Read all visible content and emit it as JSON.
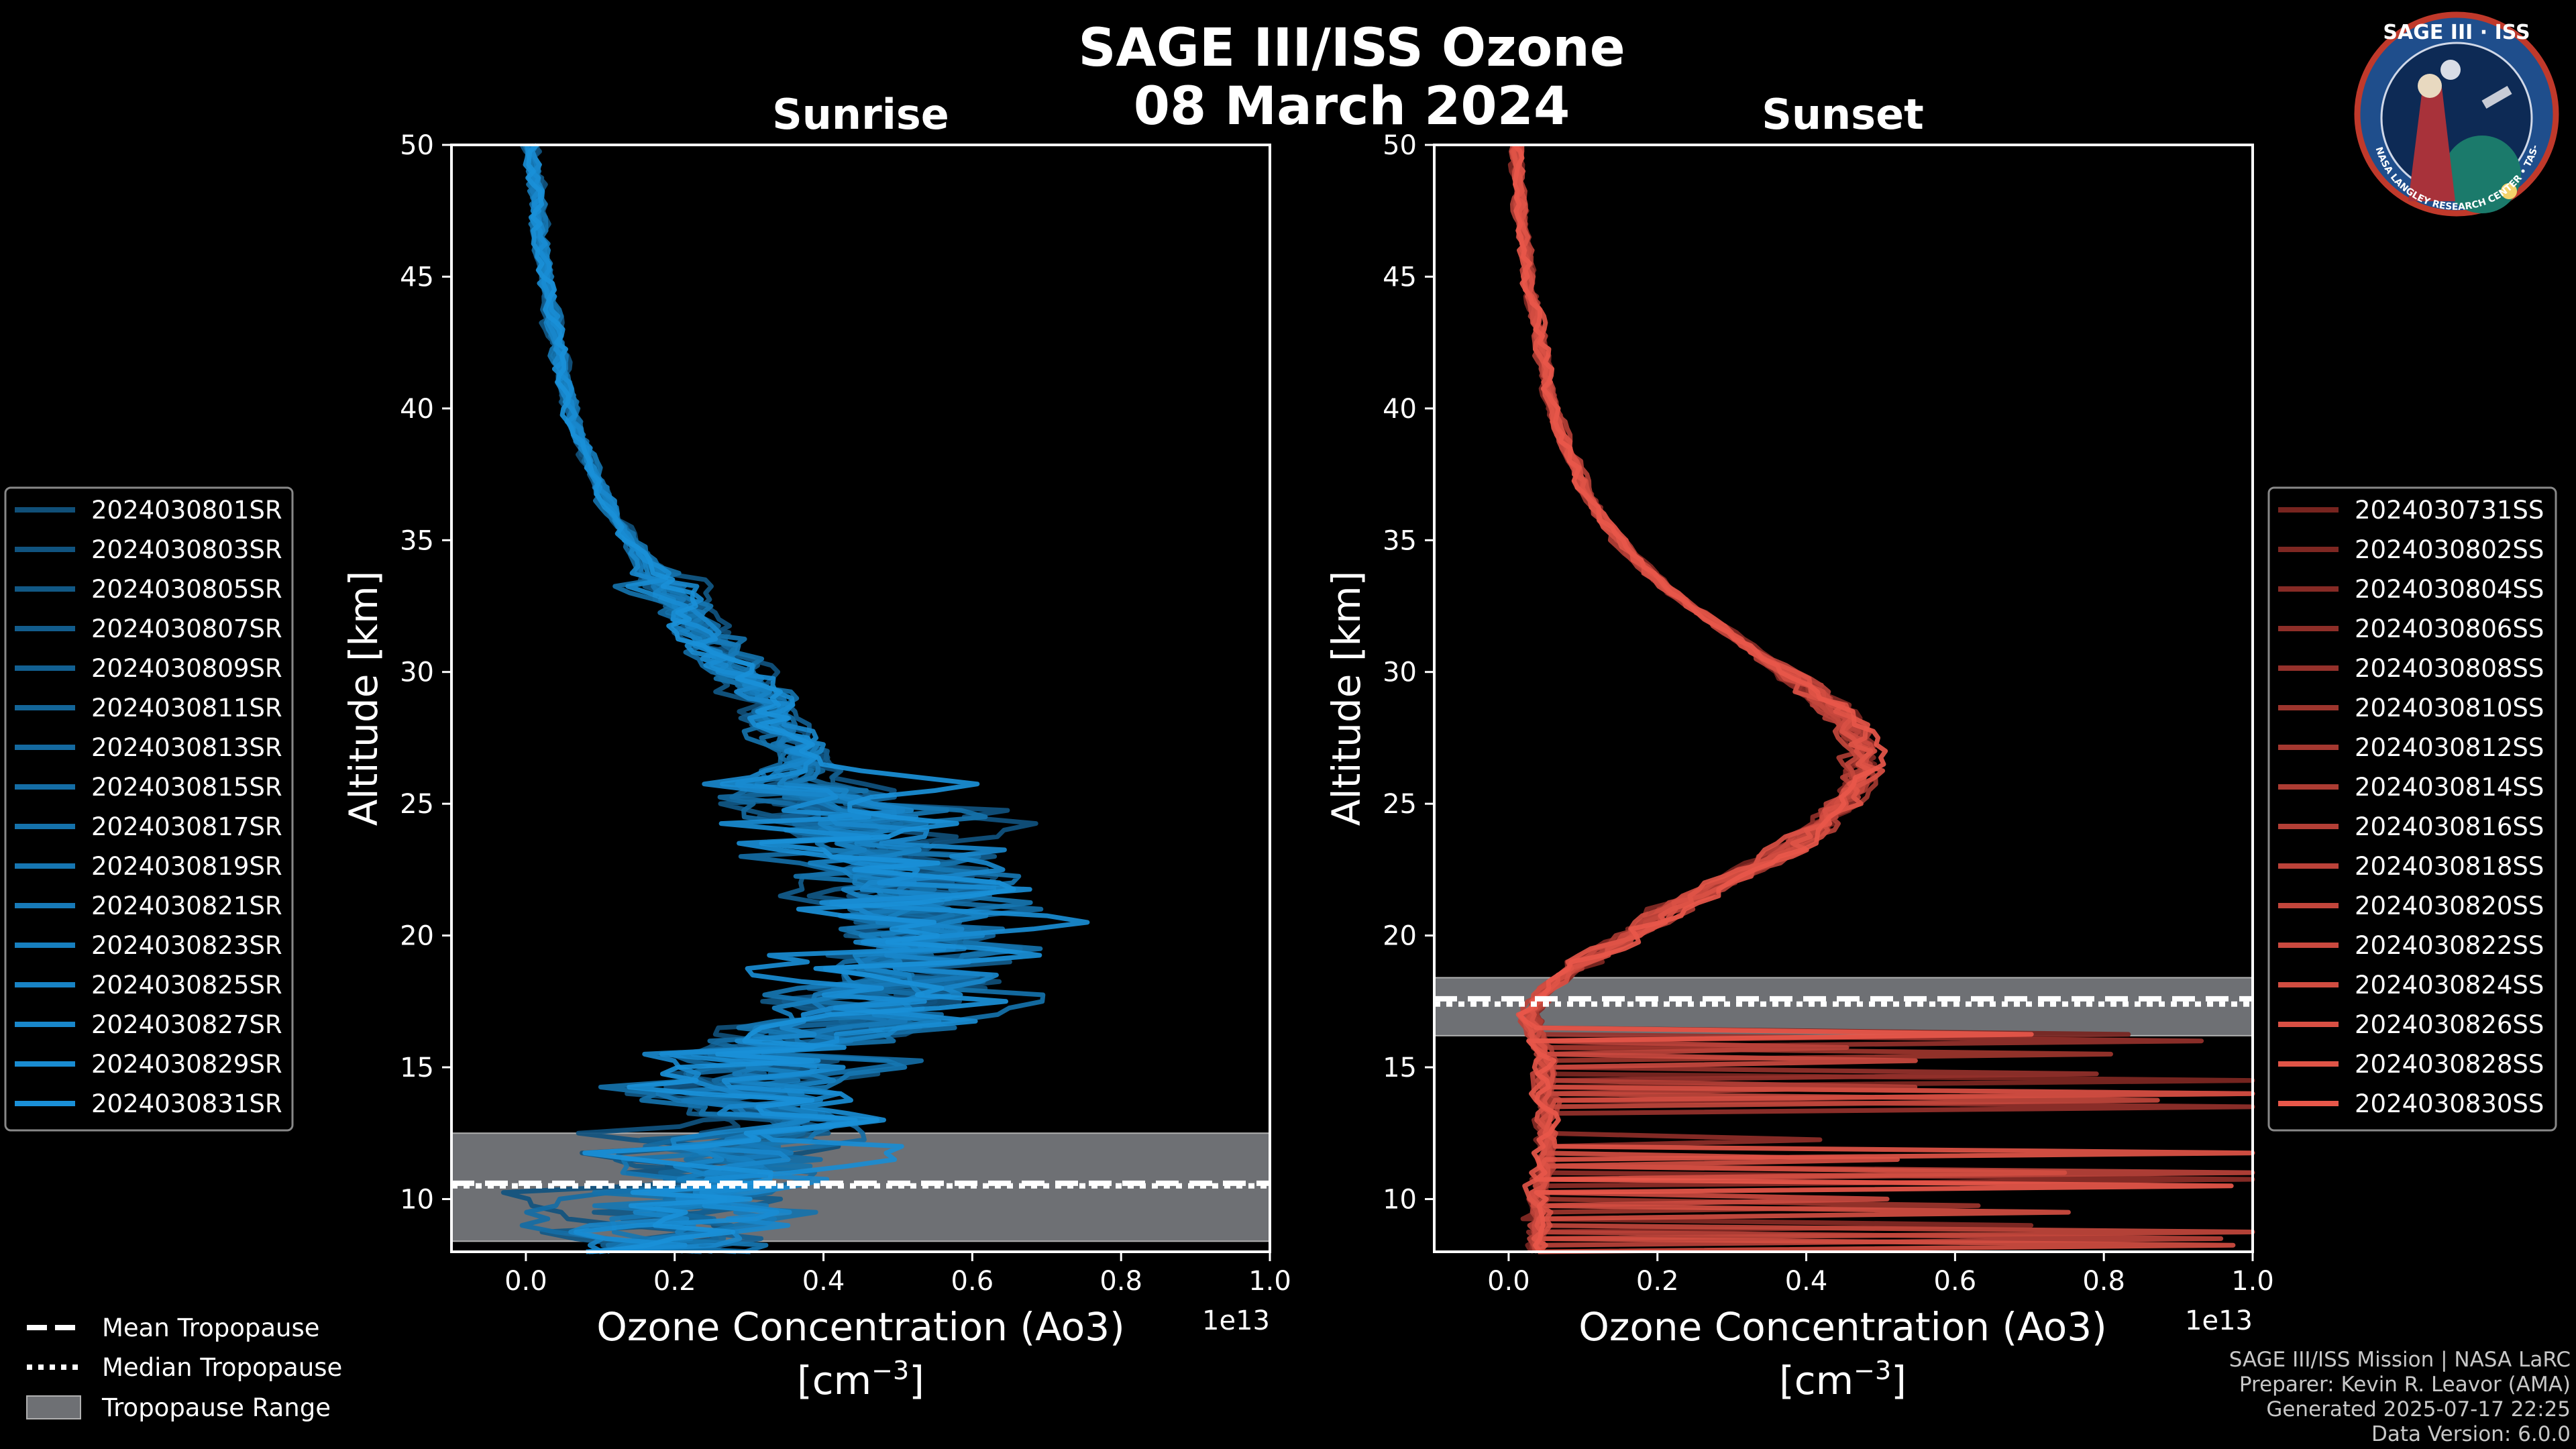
{
  "title_line1": "SAGE III/ISS Ozone",
  "title_line2": "08 March 2024",
  "logo": {
    "top": "SAGE III · ISS",
    "ring": "BALL • NASA LANGLEY RESEARCH CENTER • TAS-I • ESA",
    "colors": {
      "ring": "#1f4e8c",
      "edge": "#c0392b",
      "sky": "#0d2a55"
    }
  },
  "credits": [
    "SAGE III/ISS Mission | NASA LaRC",
    "Preparer: Kevin R. Leavor (AMA)",
    "Generated 2025-07-17 22:25",
    "Data Version: 6.0.0"
  ],
  "tropopause_legend": {
    "mean": "Mean Tropopause",
    "median": "Median Tropopause",
    "range": "Tropopause Range"
  },
  "chart_data": [
    {
      "type": "line",
      "title": "Sunrise",
      "xlabel": "Ozone Concentration (Ao3)",
      "xunits": "[cm",
      "xunits_sup": "−3",
      "xunits_end": "]",
      "ylabel": "Altitude [km]",
      "xlim": [
        -0.1,
        1.0
      ],
      "ylim": [
        8,
        50
      ],
      "x_scale_label": "1e13",
      "xticks": [
        0.0,
        0.2,
        0.4,
        0.6,
        0.8,
        1.0
      ],
      "xtick_labels": [
        "0.0",
        "0.2",
        "0.4",
        "0.6",
        "0.8",
        "1.0"
      ],
      "yticks": [
        10,
        15,
        20,
        25,
        30,
        35,
        40,
        45,
        50
      ],
      "ytick_labels": [
        "10",
        "15",
        "20",
        "25",
        "30",
        "35",
        "40",
        "45",
        "50"
      ],
      "color_dark": "#0a2c45",
      "color_light": "#1a90d8",
      "tropopause": {
        "mean": 10.6,
        "median": 10.5,
        "range": [
          8.4,
          12.5
        ]
      },
      "series_names": [
        "2024030801SR",
        "2024030803SR",
        "2024030805SR",
        "2024030807SR",
        "2024030809SR",
        "2024030811SR",
        "2024030813SR",
        "2024030815SR",
        "2024030817SR",
        "2024030819SR",
        "2024030821SR",
        "2024030823SR",
        "2024030825SR",
        "2024030827SR",
        "2024030829SR",
        "2024030831SR"
      ],
      "base_profile": {
        "altitude": [
          8,
          9,
          10,
          11,
          12,
          13,
          14,
          15,
          16,
          17,
          18,
          19,
          20,
          21,
          22,
          23,
          24,
          25,
          26,
          27,
          28,
          29,
          30,
          31,
          32,
          33,
          34,
          35,
          36,
          37,
          38,
          39,
          40,
          42,
          44,
          46,
          48,
          50
        ],
        "ozone": [
          0.18,
          0.2,
          0.22,
          0.24,
          0.26,
          0.28,
          0.3,
          0.33,
          0.38,
          0.45,
          0.5,
          0.54,
          0.55,
          0.54,
          0.52,
          0.49,
          0.46,
          0.43,
          0.4,
          0.37,
          0.34,
          0.31,
          0.28,
          0.25,
          0.22,
          0.19,
          0.165,
          0.14,
          0.12,
          0.1,
          0.085,
          0.07,
          0.06,
          0.045,
          0.032,
          0.022,
          0.015,
          0.01
        ]
      }
    },
    {
      "type": "line",
      "title": "Sunset",
      "xlabel": "Ozone Concentration (Ao3)",
      "xunits": "[cm",
      "xunits_sup": "−3",
      "xunits_end": "]",
      "ylabel": "Altitude [km]",
      "xlim": [
        -0.1,
        1.0
      ],
      "ylim": [
        8,
        50
      ],
      "x_scale_label": "1e13",
      "xticks": [
        0.0,
        0.2,
        0.4,
        0.6,
        0.8,
        1.0
      ],
      "xtick_labels": [
        "0.0",
        "0.2",
        "0.4",
        "0.6",
        "0.8",
        "1.0"
      ],
      "yticks": [
        10,
        15,
        20,
        25,
        30,
        35,
        40,
        45,
        50
      ],
      "ytick_labels": [
        "10",
        "15",
        "20",
        "25",
        "30",
        "35",
        "40",
        "45",
        "50"
      ],
      "color_dark": "#3a0808",
      "color_light": "#e8574a",
      "tropopause": {
        "mean": 17.6,
        "median": 17.4,
        "range": [
          16.2,
          18.4
        ]
      },
      "series_names": [
        "2024030731SS",
        "2024030802SS",
        "2024030804SS",
        "2024030806SS",
        "2024030808SS",
        "2024030810SS",
        "2024030812SS",
        "2024030814SS",
        "2024030816SS",
        "2024030818SS",
        "2024030820SS",
        "2024030822SS",
        "2024030824SS",
        "2024030826SS",
        "2024030828SS",
        "2024030830SS"
      ],
      "base_profile": {
        "altitude": [
          8,
          9,
          10,
          11,
          12,
          13,
          14,
          15,
          16,
          17,
          18,
          19,
          20,
          21,
          22,
          23,
          24,
          25,
          26,
          27,
          28,
          29,
          30,
          31,
          32,
          33,
          34,
          35,
          36,
          37,
          38,
          39,
          40,
          42,
          44,
          46,
          48,
          50
        ],
        "ozone": [
          0.04,
          0.04,
          0.04,
          0.045,
          0.05,
          0.05,
          0.05,
          0.05,
          0.04,
          0.03,
          0.05,
          0.1,
          0.16,
          0.22,
          0.29,
          0.36,
          0.41,
          0.45,
          0.47,
          0.48,
          0.46,
          0.42,
          0.37,
          0.32,
          0.27,
          0.22,
          0.18,
          0.15,
          0.12,
          0.1,
          0.085,
          0.07,
          0.06,
          0.045,
          0.032,
          0.022,
          0.015,
          0.01
        ]
      }
    }
  ]
}
